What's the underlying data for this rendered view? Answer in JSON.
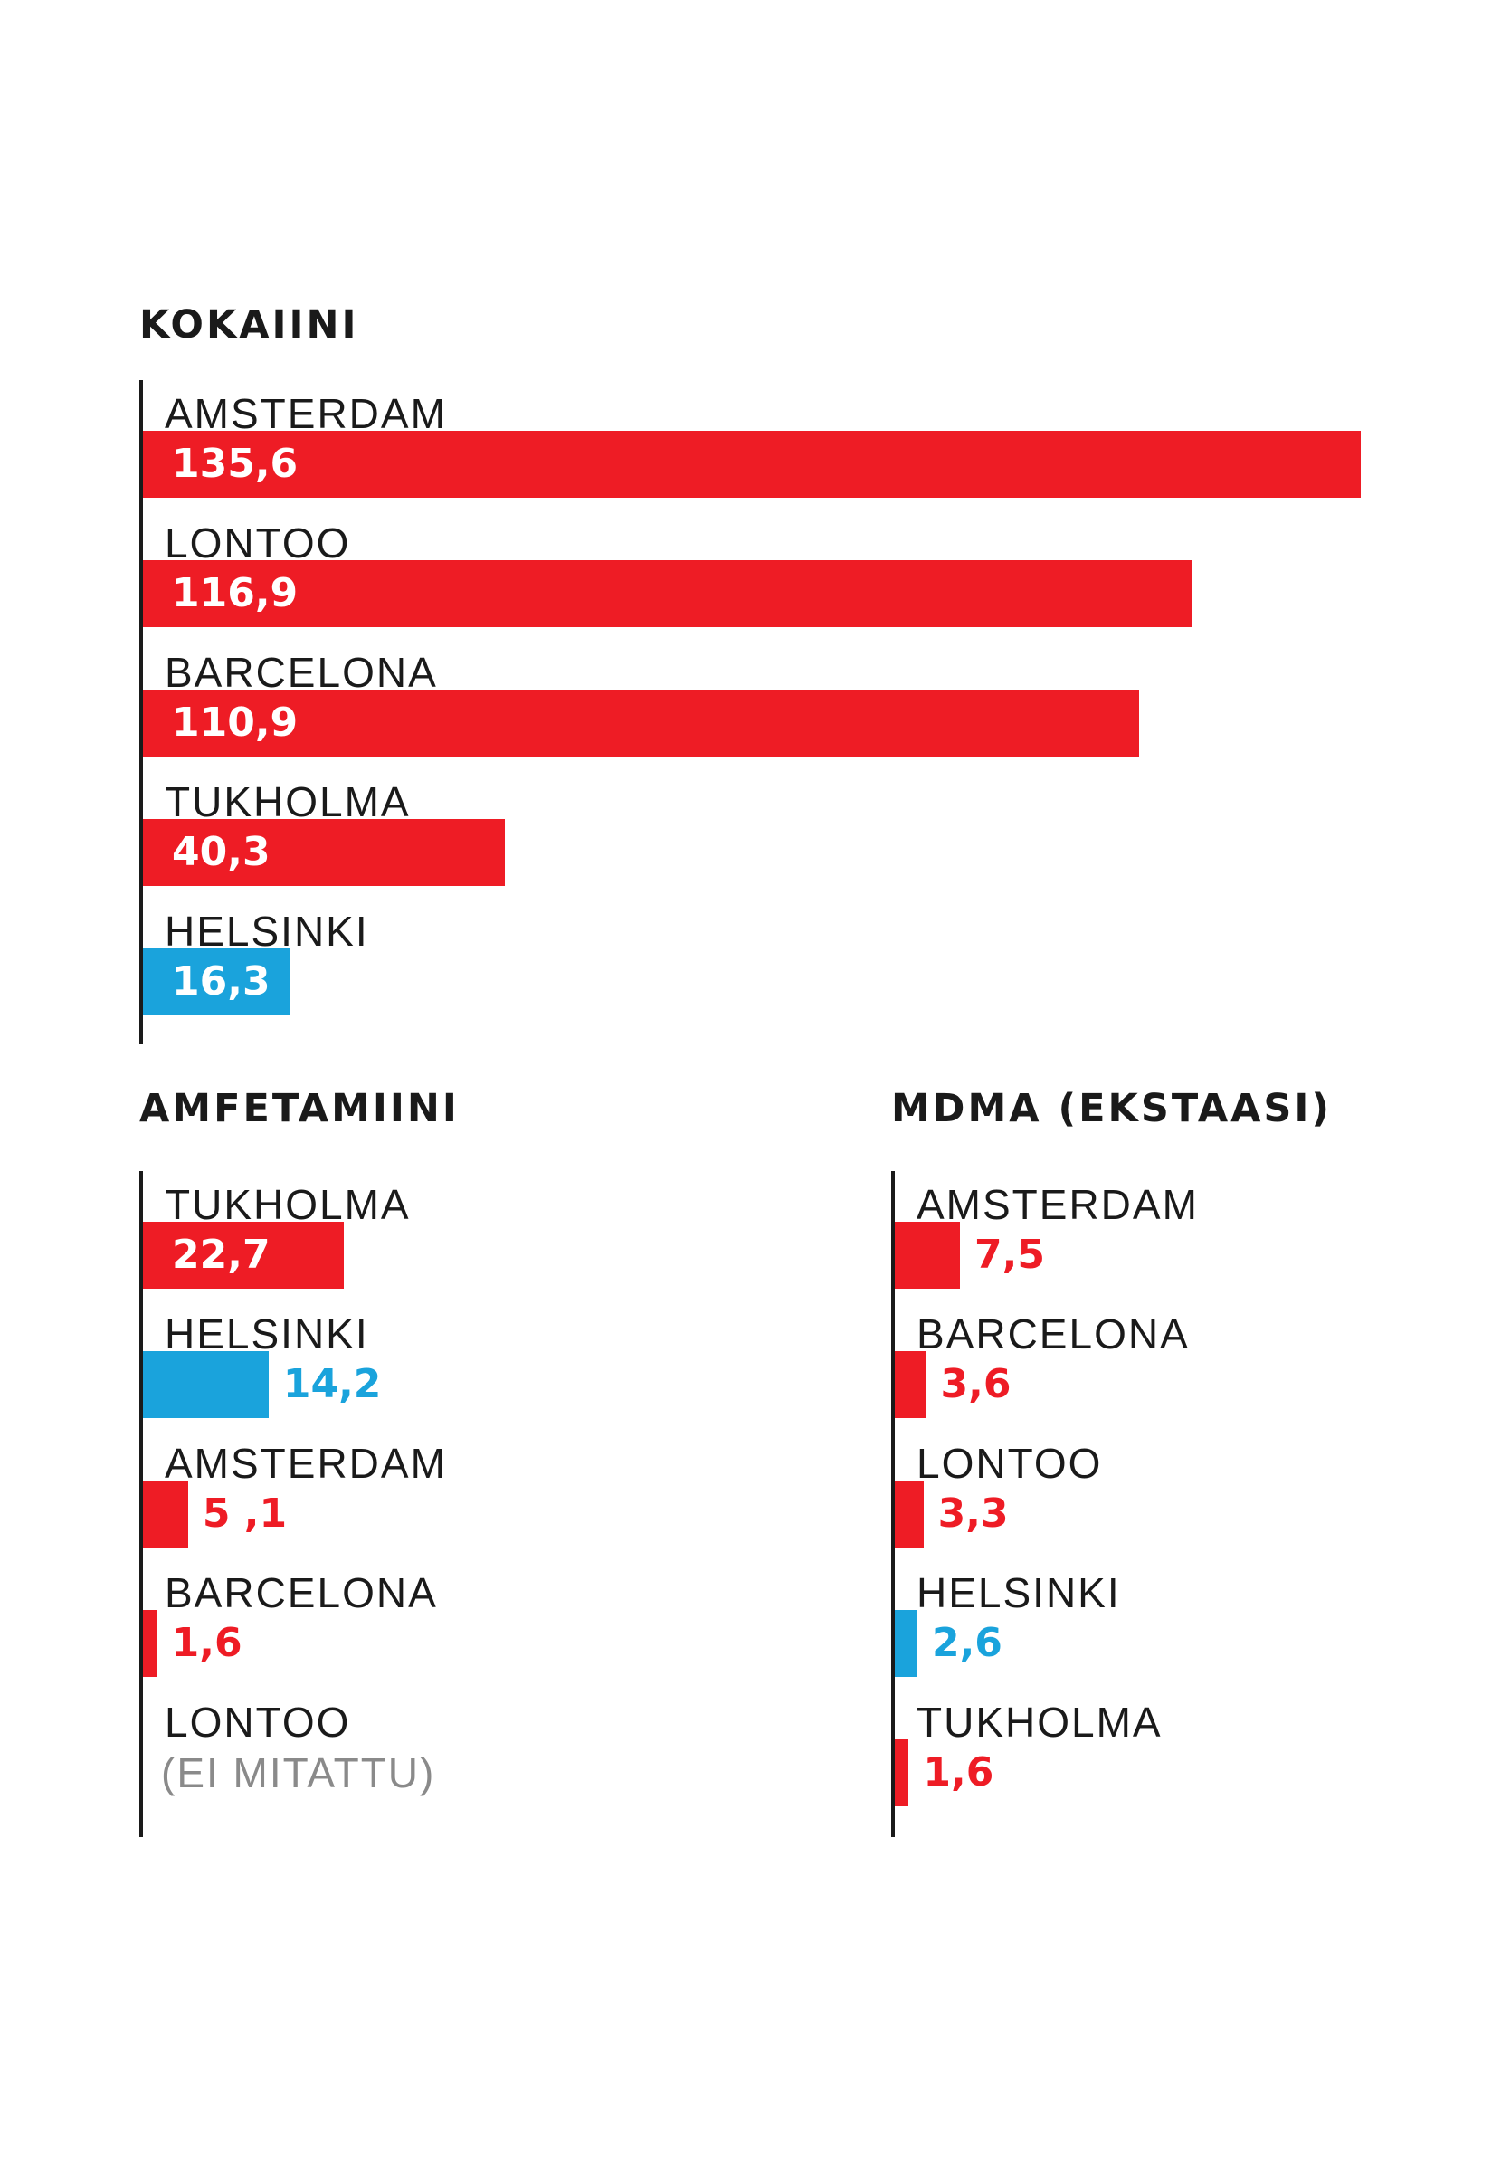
{
  "colors": {
    "highlight": "#1aa3dc",
    "other": "#ee1c25",
    "axis": "#1a1a1a",
    "note": "#8a8a8a"
  },
  "chart_data": [
    {
      "type": "bar",
      "orientation": "horizontal",
      "title": "KOKAIINI",
      "categories": [
        "AMSTERDAM",
        "LONTOO",
        "BARCELONA",
        "TUKHOLMA",
        "HELSINKI"
      ],
      "values": [
        135.6,
        116.9,
        110.9,
        40.3,
        16.3
      ],
      "value_labels": [
        "135,6",
        "116,9",
        "110,9",
        "40,3",
        "16,3"
      ],
      "highlight": [
        false,
        false,
        false,
        false,
        true
      ]
    },
    {
      "type": "bar",
      "orientation": "horizontal",
      "title": "AMFETAMIINI",
      "categories": [
        "TUKHOLMA",
        "HELSINKI",
        "AMSTERDAM",
        "BARCELONA",
        "LONTOO"
      ],
      "values": [
        22.7,
        14.2,
        5.1,
        1.6,
        null
      ],
      "value_labels": [
        "22,7",
        "14,2",
        "5 ,1",
        "1,6",
        "(EI MITATTU)"
      ],
      "highlight": [
        false,
        true,
        false,
        false,
        false
      ]
    },
    {
      "type": "bar",
      "orientation": "horizontal",
      "title": "MDMA (EKSTAASI)",
      "categories": [
        "AMSTERDAM",
        "BARCELONA",
        "LONTOO",
        "HELSINKI",
        "TUKHOLMA"
      ],
      "values": [
        7.5,
        3.6,
        3.3,
        2.6,
        1.6
      ],
      "value_labels": [
        "7,5",
        "3,6",
        "3,3",
        "2,6",
        "1,6"
      ],
      "highlight": [
        false,
        false,
        false,
        true,
        false
      ]
    }
  ]
}
